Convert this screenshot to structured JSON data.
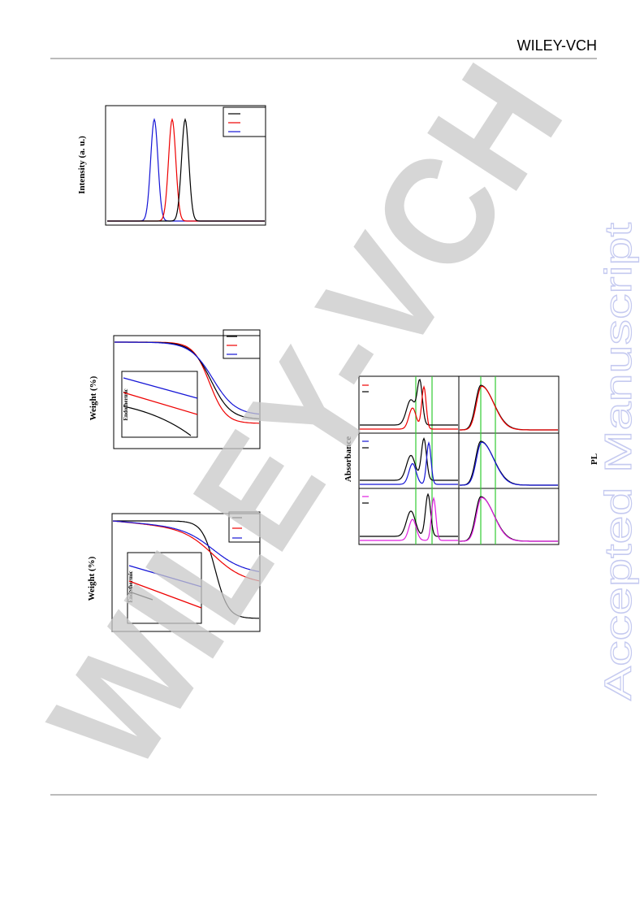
{
  "header": {
    "brand": "WILEY-VCH"
  },
  "figures": [
    {
      "y_label": "Intensity (a. u.)"
    },
    {
      "y_label": "Weight (%)",
      "inset_label": "Endothermic"
    },
    {
      "y_label": "Weight (%)",
      "inset_label": "Endothermic"
    },
    {
      "y_label_left": "Absorbance",
      "y_label_right": "PL"
    }
  ],
  "watermarks": {
    "diagonal": "WILEY-VCH",
    "side": "Accepted Manuscript"
  }
}
